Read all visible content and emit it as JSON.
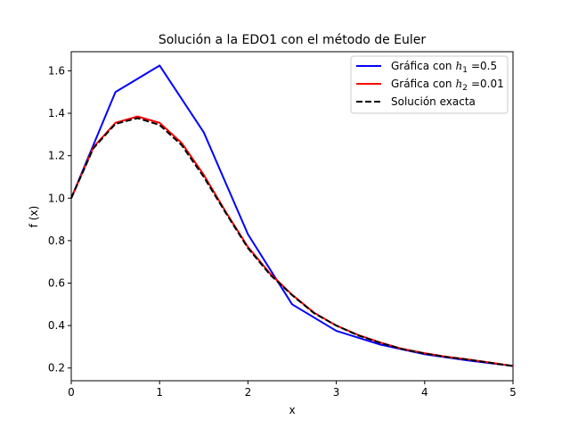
{
  "chart_data": {
    "type": "line",
    "title": "Solución a la EDO1 con el método de Euler",
    "xlabel": "x",
    "ylabel": "f (x)",
    "xlim": [
      0,
      5
    ],
    "ylim": [
      0.14,
      1.69
    ],
    "xticks": [
      0,
      1,
      2,
      3,
      4,
      5
    ],
    "xtick_labels": [
      "0",
      "1",
      "2",
      "3",
      "4",
      "5"
    ],
    "yticks": [
      0.2,
      0.4,
      0.6,
      0.8,
      1.0,
      1.2,
      1.4,
      1.6
    ],
    "ytick_labels": [
      "0.2",
      "0.4",
      "0.6",
      "0.8",
      "1.0",
      "1.2",
      "1.4",
      "1.6"
    ],
    "grid": false,
    "legend_position": "top-right",
    "series": [
      {
        "name": "Gráfica con h1 =0.5",
        "color": "#0000ff",
        "style": "solid",
        "x": [
          0,
          0.5,
          1.0,
          1.5,
          2.0,
          2.5,
          3.0,
          3.5,
          4.0,
          4.5,
          5.0
        ],
        "y": [
          1.0,
          1.5,
          1.625,
          1.31,
          0.83,
          0.5,
          0.375,
          0.31,
          0.265,
          0.235,
          0.21
        ]
      },
      {
        "name": "Gráfica con h2 =0.01",
        "color": "#ff0000",
        "style": "solid",
        "x": [
          0,
          0.25,
          0.5,
          0.75,
          1.0,
          1.25,
          1.5,
          1.75,
          2.0,
          2.25,
          2.5,
          2.75,
          3.0,
          3.25,
          3.5,
          3.75,
          4.0,
          4.25,
          4.5,
          4.75,
          5.0
        ],
        "y": [
          1.0,
          1.24,
          1.355,
          1.385,
          1.355,
          1.26,
          1.11,
          0.935,
          0.77,
          0.645,
          0.545,
          0.46,
          0.4,
          0.355,
          0.32,
          0.29,
          0.27,
          0.253,
          0.24,
          0.225,
          0.21
        ]
      },
      {
        "name": "Solución exacta",
        "color": "#000000",
        "style": "dashed",
        "x": [
          0,
          0.25,
          0.5,
          0.75,
          1.0,
          1.25,
          1.5,
          1.75,
          2.0,
          2.25,
          2.5,
          2.75,
          3.0,
          3.25,
          3.5,
          3.75,
          4.0,
          4.25,
          4.5,
          4.75,
          5.0
        ],
        "y": [
          1.0,
          1.235,
          1.35,
          1.377,
          1.345,
          1.25,
          1.1,
          0.93,
          0.765,
          0.64,
          0.543,
          0.458,
          0.4,
          0.353,
          0.318,
          0.289,
          0.268,
          0.252,
          0.239,
          0.224,
          0.209
        ]
      }
    ]
  },
  "legend": {
    "items": [
      {
        "prefix": "Gráfica con",
        "var": "h",
        "sub": "1",
        "suffix": "=0.5"
      },
      {
        "prefix": "Gráfica con",
        "var": "h",
        "sub": "2",
        "suffix": "=0.01"
      },
      {
        "prefix": "Solución exacta",
        "var": "",
        "sub": "",
        "suffix": ""
      }
    ]
  }
}
